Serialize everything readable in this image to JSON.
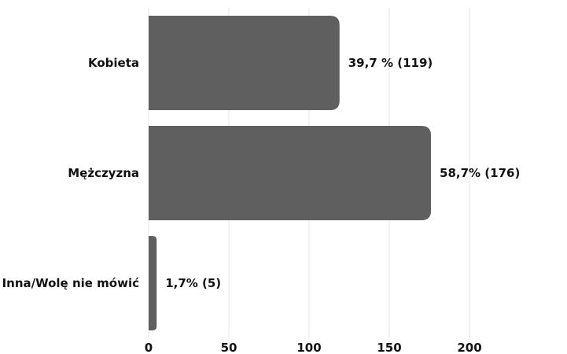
{
  "chart_data": {
    "type": "bar",
    "orientation": "horizontal",
    "categories": [
      "Kobieta",
      "Mężczyzna",
      "Inna/Wolę nie mówić"
    ],
    "values": [
      119,
      176,
      5
    ],
    "data_labels": [
      "39,7 % (119)",
      "58,7% (176)",
      "1,7% (5)"
    ],
    "x_ticks": [
      0,
      50,
      100,
      150,
      200
    ],
    "xlim": [
      0,
      200
    ],
    "grid": true,
    "bar_color": "#5f5f5f",
    "title": "",
    "xlabel": "",
    "ylabel": ""
  }
}
